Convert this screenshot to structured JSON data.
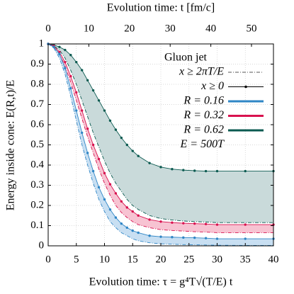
{
  "chart_data": {
    "type": "line",
    "title": "Evolution time: t [fm/c]",
    "x_label": "Evolution time: τ = g⁴T√(T/E) t",
    "y_label": "Energy inside cone: E(R,t)/E",
    "legend_title": "Gluon jet",
    "legend_note": "E = 500T",
    "curve_styles": [
      {
        "name": "x ≥ 2πT/E",
        "style": "dashdot",
        "color": "#555555"
      },
      {
        "name": "x ≥ 0",
        "style": "dots",
        "color": "#000000"
      }
    ],
    "x": [
      0,
      1,
      2,
      3,
      4,
      5,
      6,
      7,
      8,
      9,
      10,
      11,
      12,
      13,
      14,
      15,
      16,
      18,
      20,
      22,
      24,
      26,
      28,
      30,
      35,
      40
    ],
    "series": [
      {
        "name": "R = 0.62",
        "color": "#0b5a50",
        "band_color": "#c9dada",
        "upper": [
          1,
          0.995,
          0.985,
          0.97,
          0.945,
          0.91,
          0.87,
          0.82,
          0.77,
          0.72,
          0.67,
          0.62,
          0.575,
          0.535,
          0.5,
          0.47,
          0.445,
          0.41,
          0.39,
          0.38,
          0.375,
          0.372,
          0.37,
          0.37,
          0.37,
          0.37
        ],
        "lower": [
          1,
          0.99,
          0.97,
          0.93,
          0.87,
          0.8,
          0.72,
          0.64,
          0.56,
          0.49,
          0.42,
          0.36,
          0.31,
          0.27,
          0.23,
          0.2,
          0.18,
          0.15,
          0.135,
          0.128,
          0.123,
          0.12,
          0.118,
          0.115,
          0.115,
          0.115
        ]
      },
      {
        "name": "R = 0.32",
        "color": "#d8124f",
        "band_color": "#f7c3d2",
        "upper": [
          1,
          0.99,
          0.96,
          0.91,
          0.84,
          0.76,
          0.67,
          0.58,
          0.5,
          0.43,
          0.36,
          0.305,
          0.26,
          0.22,
          0.19,
          0.17,
          0.15,
          0.13,
          0.12,
          0.115,
          0.112,
          0.11,
          0.108,
          0.105,
          0.105,
          0.105
        ],
        "lower": [
          1,
          0.985,
          0.95,
          0.89,
          0.81,
          0.72,
          0.63,
          0.54,
          0.46,
          0.38,
          0.31,
          0.25,
          0.2,
          0.165,
          0.14,
          0.12,
          0.105,
          0.09,
          0.08,
          0.076,
          0.073,
          0.07,
          0.068,
          0.065,
          0.065,
          0.065
        ]
      },
      {
        "name": "R = 0.16",
        "color": "#2f86c6",
        "band_color": "#c8dff2",
        "upper": [
          1,
          0.985,
          0.95,
          0.88,
          0.78,
          0.67,
          0.56,
          0.46,
          0.37,
          0.29,
          0.23,
          0.18,
          0.14,
          0.11,
          0.09,
          0.075,
          0.065,
          0.05,
          0.045,
          0.043,
          0.041,
          0.04,
          0.038,
          0.035,
          0.035,
          0.035
        ],
        "lower": [
          1,
          0.98,
          0.93,
          0.85,
          0.74,
          0.62,
          0.5,
          0.4,
          0.31,
          0.23,
          0.17,
          0.12,
          0.09,
          0.065,
          0.05,
          0.035,
          0.025,
          0.015,
          0.01,
          0.008,
          0.006,
          0.005,
          0.004,
          0.003,
          0.002,
          0.002
        ]
      }
    ],
    "xlim": [
      0,
      40
    ],
    "xticks": [
      0,
      5,
      10,
      15,
      20,
      25,
      30,
      35,
      40
    ],
    "x2lim": [
      0,
      55.4
    ],
    "x2ticks": [
      0,
      10,
      20,
      30,
      40,
      50
    ],
    "ylim": [
      0,
      1
    ],
    "yticks": [
      0,
      0.1,
      0.2,
      0.3,
      0.4,
      0.5,
      0.6,
      0.7,
      0.8,
      0.9,
      1
    ],
    "grid": true
  }
}
